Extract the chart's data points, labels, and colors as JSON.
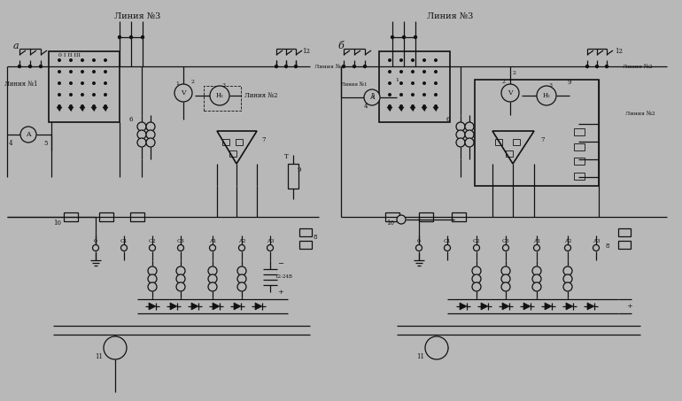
{
  "bg_color": "#b8b8b8",
  "line_color": "#111111",
  "lw": 0.9,
  "lw2": 1.2,
  "fig_w": 7.7,
  "fig_h": 4.53,
  "dpi": 100,
  "title_a": "а",
  "title_b": "б",
  "linia3": "Линия №3",
  "linia2": "Линия №2",
  "linia1": "Линия №1",
  "v24": "12-24В",
  "num0": "0",
  "c1": "C1",
  "c2": "C2",
  "c3": "C3",
  "a1": "A1",
  "a2": "A2",
  "a3": "A3"
}
